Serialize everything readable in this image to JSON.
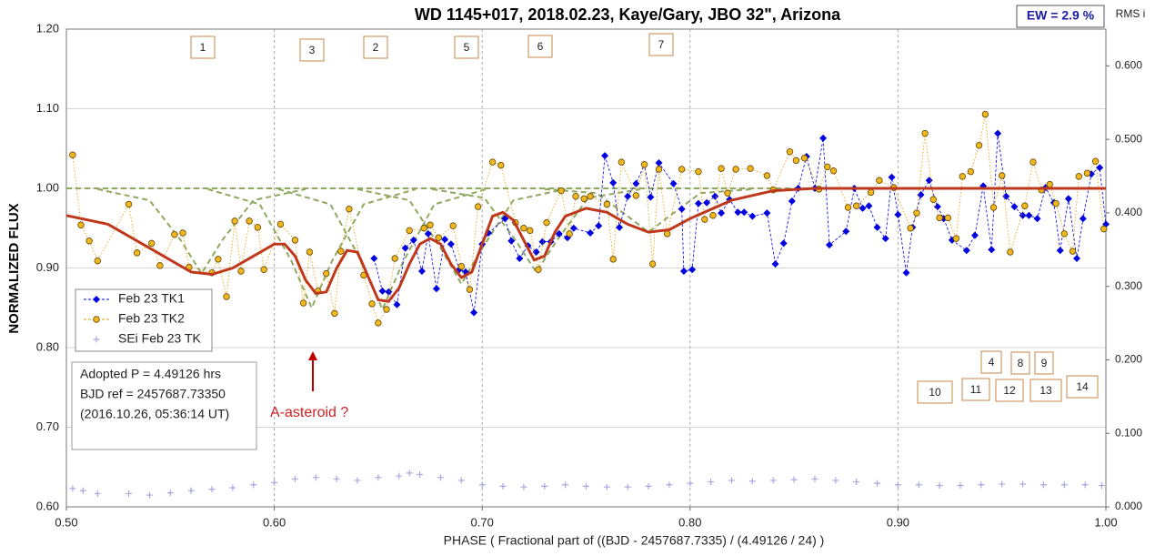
{
  "chart_data": {
    "type": "scatter",
    "title": "WD 1145+017, 2018.02.23, Kaye/Gary,  JBO 32\", Arizona",
    "x_label": "PHASE ( Fractional part of ((BJD - 2457687.7335)  / (4.49126  / 24) )",
    "y_label": "NORMALIZED  FLUX",
    "y2_label": "RMS i",
    "ew_label": "EW =  2.9 %",
    "info": [
      "Adopted P = 4.49126 hrs",
      "BJD ref = 2457687.73350",
      "(2016.10.26, 05:36:14 UT)"
    ],
    "asteroid_note": "A-asteroid ?",
    "dip_labels": [
      "1",
      "3",
      "2",
      "5",
      "6",
      "7",
      "4",
      "8",
      "9",
      "10",
      "11",
      "12",
      "13",
      "14"
    ],
    "xlim": [
      0.5,
      1.0
    ],
    "xticks": [
      {
        "value": 0.5,
        "label": "0.50"
      },
      {
        "value": 0.6,
        "label": "0.60"
      },
      {
        "value": 0.7,
        "label": "0.70"
      },
      {
        "value": 0.8,
        "label": "0.80"
      },
      {
        "value": 0.9,
        "label": "0.90"
      },
      {
        "value": 1.0,
        "label": "1.00"
      }
    ],
    "ylim": [
      0.6,
      1.2
    ],
    "yticks": [
      {
        "value": 0.6,
        "label": "0.60"
      },
      {
        "value": 0.7,
        "label": "0.70"
      },
      {
        "value": 0.8,
        "label": "0.80"
      },
      {
        "value": 0.9,
        "label": "0.90"
      },
      {
        "value": 1.0,
        "label": "1.00"
      },
      {
        "value": 1.1,
        "label": "1.10"
      },
      {
        "value": 1.2,
        "label": "1.20"
      }
    ],
    "y2lim": [
      0,
      0.65
    ],
    "y2ticks": [
      {
        "value": 0,
        "label": "0.000"
      },
      {
        "value": 0.1,
        "label": "0.100"
      },
      {
        "value": 0.2,
        "label": "0.200"
      },
      {
        "value": 0.3,
        "label": "0.300"
      },
      {
        "value": 0.4,
        "label": "0.400"
      },
      {
        "value": 0.5,
        "label": "0.500"
      },
      {
        "value": 0.6,
        "label": "0.600"
      }
    ],
    "grid": true,
    "series": [
      {
        "name": "Feb 23 TK1",
        "color": "#0000e0",
        "marker": "diamond",
        "x": [
          0.648,
          0.652,
          0.655,
          0.659,
          0.663,
          0.667,
          0.671,
          0.674,
          0.678,
          0.682,
          0.685,
          0.689,
          0.692,
          0.696,
          0.7,
          0.703,
          0.711,
          0.714,
          0.718,
          0.722,
          0.726,
          0.729,
          0.733,
          0.737,
          0.741,
          0.744,
          0.752,
          0.756,
          0.759,
          0.763,
          0.766,
          0.77,
          0.774,
          0.778,
          0.781,
          0.785,
          0.792,
          0.796,
          0.797,
          0.801,
          0.804,
          0.808,
          0.812,
          0.815,
          0.819,
          0.823,
          0.826,
          0.83,
          0.837,
          0.841,
          0.845,
          0.849,
          0.852,
          0.856,
          0.86,
          0.864,
          0.867,
          0.875,
          0.879,
          0.883,
          0.886,
          0.89,
          0.894,
          0.897,
          0.9,
          0.904,
          0.907,
          0.911,
          0.915,
          0.919,
          0.922,
          0.926,
          0.933,
          0.937,
          0.941,
          0.945,
          0.948,
          0.952,
          0.956,
          0.96,
          0.963,
          0.967,
          0.971,
          0.975,
          0.978,
          0.982,
          0.986,
          0.989,
          0.993,
          0.997,
          1.0
        ],
        "values": [
          0.912,
          0.871,
          0.87,
          0.854,
          0.925,
          0.935,
          0.896,
          0.943,
          0.874,
          0.936,
          0.93,
          0.898,
          0.895,
          0.844,
          0.93,
          0.944,
          0.962,
          0.934,
          0.912,
          0.928,
          0.92,
          0.933,
          0.933,
          0.943,
          0.938,
          0.95,
          0.944,
          0.953,
          1.041,
          1.007,
          0.951,
          0.99,
          1.006,
          1.03,
          0.989,
          1.032,
          1.006,
          0.974,
          0.896,
          0.898,
          0.981,
          0.982,
          0.99,
          0.969,
          0.986,
          0.97,
          0.97,
          0.965,
          0.969,
          0.905,
          0.931,
          0.984,
          1.0,
          1.04,
          1.0,
          1.063,
          0.929,
          0.946,
          1.0,
          0.975,
          0.978,
          0.951,
          0.937,
          1.014,
          0.967,
          0.894,
          0.951,
          0.992,
          1.01,
          0.977,
          0.962,
          0.935,
          0.922,
          0.941,
          1.003,
          0.923,
          1.069,
          0.99,
          0.977,
          0.966,
          0.966,
          0.962,
          1.001,
          0.982,
          0.922,
          0.987,
          0.912,
          0.962,
          1.018,
          1.026,
          0.955
        ]
      },
      {
        "name": "Feb 23 TK2",
        "color": "#e0a000",
        "marker": "circle",
        "x": [
          0.503,
          0.507,
          0.511,
          0.515,
          0.53,
          0.534,
          0.541,
          0.545,
          0.552,
          0.556,
          0.559,
          0.57,
          0.573,
          0.577,
          0.581,
          0.584,
          0.588,
          0.592,
          0.595,
          0.603,
          0.61,
          0.614,
          0.617,
          0.621,
          0.625,
          0.629,
          0.632,
          0.636,
          0.643,
          0.647,
          0.65,
          0.654,
          0.658,
          0.665,
          0.672,
          0.675,
          0.679,
          0.686,
          0.69,
          0.694,
          0.698,
          0.705,
          0.709,
          0.716,
          0.72,
          0.723,
          0.727,
          0.731,
          0.738,
          0.742,
          0.745,
          0.749,
          0.752,
          0.76,
          0.763,
          0.767,
          0.774,
          0.778,
          0.782,
          0.785,
          0.789,
          0.796,
          0.804,
          0.807,
          0.811,
          0.815,
          0.818,
          0.822,
          0.829,
          0.837,
          0.84,
          0.848,
          0.851,
          0.855,
          0.862,
          0.866,
          0.869,
          0.876,
          0.88,
          0.887,
          0.891,
          0.898,
          0.906,
          0.909,
          0.913,
          0.917,
          0.92,
          0.924,
          0.928,
          0.931,
          0.935,
          0.939,
          0.942,
          0.946,
          0.95,
          0.954,
          0.961,
          0.965,
          0.969,
          0.973,
          0.976,
          0.98,
          0.984,
          0.987,
          0.991,
          0.995,
          0.999
        ],
        "values": [
          1.042,
          0.954,
          0.934,
          0.909,
          0.98,
          0.919,
          0.931,
          0.903,
          0.942,
          0.944,
          0.901,
          0.894,
          0.911,
          0.864,
          0.959,
          0.896,
          0.959,
          0.951,
          0.898,
          0.955,
          0.935,
          0.856,
          0.92,
          0.871,
          0.893,
          0.843,
          0.921,
          0.974,
          0.891,
          0.855,
          0.831,
          0.848,
          0.912,
          0.947,
          0.95,
          0.954,
          0.938,
          0.953,
          0.902,
          0.873,
          0.977,
          1.033,
          1.029,
          0.957,
          0.95,
          0.947,
          0.898,
          0.957,
          0.997,
          0.943,
          0.99,
          0.987,
          0.99,
          0.98,
          0.911,
          1.033,
          0.991,
          1.03,
          0.905,
          1.024,
          0.943,
          1.024,
          1.021,
          0.961,
          0.966,
          1.025,
          0.994,
          1.024,
          1.025,
          1.016,
          0.998,
          1.046,
          1.035,
          1.038,
          0.999,
          1.027,
          1.022,
          0.976,
          0.978,
          0.995,
          1.01,
          1.001,
          0.95,
          0.969,
          1.069,
          0.986,
          0.963,
          0.963,
          0.937,
          1.015,
          1.021,
          1.054,
          1.093,
          0.976,
          1.016,
          0.92,
          0.978,
          1.033,
          0.998,
          1.005,
          0.981,
          0.943,
          0.921,
          1.015,
          1.019,
          1.034,
          0.949
        ]
      },
      {
        "name": "SEi Feb 23 TK",
        "color": "#a8a8e0",
        "marker": "plus",
        "axis": "y2",
        "x": [
          0.503,
          0.508,
          0.515,
          0.53,
          0.54,
          0.55,
          0.56,
          0.57,
          0.58,
          0.59,
          0.6,
          0.61,
          0.62,
          0.63,
          0.64,
          0.65,
          0.66,
          0.665,
          0.67,
          0.68,
          0.69,
          0.7,
          0.71,
          0.72,
          0.73,
          0.74,
          0.75,
          0.76,
          0.77,
          0.78,
          0.79,
          0.8,
          0.81,
          0.82,
          0.83,
          0.84,
          0.85,
          0.86,
          0.87,
          0.88,
          0.89,
          0.9,
          0.91,
          0.92,
          0.93,
          0.94,
          0.95,
          0.96,
          0.97,
          0.98,
          0.99,
          0.998
        ],
        "values": [
          0.025,
          0.022,
          0.018,
          0.018,
          0.016,
          0.019,
          0.022,
          0.024,
          0.026,
          0.03,
          0.033,
          0.038,
          0.04,
          0.038,
          0.036,
          0.04,
          0.042,
          0.046,
          0.044,
          0.04,
          0.036,
          0.03,
          0.028,
          0.027,
          0.028,
          0.03,
          0.028,
          0.027,
          0.027,
          0.028,
          0.03,
          0.032,
          0.034,
          0.036,
          0.035,
          0.036,
          0.037,
          0.038,
          0.036,
          0.034,
          0.032,
          0.03,
          0.03,
          0.029,
          0.029,
          0.03,
          0.031,
          0.031,
          0.03,
          0.03,
          0.03,
          0.029
        ]
      }
    ],
    "model": {
      "color": "#c0381c",
      "x": [
        0.5,
        0.52,
        0.54,
        0.56,
        0.57,
        0.58,
        0.59,
        0.6,
        0.605,
        0.61,
        0.615,
        0.62,
        0.625,
        0.63,
        0.635,
        0.64,
        0.645,
        0.65,
        0.655,
        0.66,
        0.665,
        0.67,
        0.675,
        0.68,
        0.685,
        0.69,
        0.695,
        0.7,
        0.705,
        0.71,
        0.715,
        0.72,
        0.725,
        0.73,
        0.735,
        0.74,
        0.75,
        0.76,
        0.77,
        0.78,
        0.79,
        0.8,
        0.82,
        0.84,
        0.86,
        1.0
      ],
      "values": [
        0.966,
        0.955,
        0.925,
        0.895,
        0.892,
        0.9,
        0.915,
        0.93,
        0.93,
        0.915,
        0.885,
        0.868,
        0.87,
        0.9,
        0.922,
        0.92,
        0.89,
        0.86,
        0.858,
        0.875,
        0.905,
        0.93,
        0.937,
        0.93,
        0.905,
        0.888,
        0.895,
        0.93,
        0.965,
        0.97,
        0.96,
        0.935,
        0.91,
        0.915,
        0.945,
        0.965,
        0.975,
        0.97,
        0.955,
        0.945,
        0.948,
        0.962,
        0.985,
        0.997,
        1.0,
        1.0
      ]
    },
    "components": {
      "color": "#8fa860",
      "x": [
        0.5,
        1.0,
        null,
        0.515,
        0.54,
        0.555,
        0.565,
        0.575,
        0.59,
        0.615,
        null,
        0.568,
        0.593,
        0.608,
        0.618,
        0.628,
        0.643,
        0.668,
        null,
        0.602,
        0.627,
        0.642,
        0.652,
        0.662,
        0.677,
        0.702,
        null,
        0.64,
        0.665,
        0.68,
        0.69,
        0.7,
        0.715,
        0.74,
        null,
        0.676,
        0.701,
        0.716,
        0.726,
        0.736,
        0.751,
        0.776,
        null,
        0.73,
        0.755,
        0.77,
        0.78,
        0.79,
        0.805,
        0.83
      ],
      "values": [
        1.0,
        1.0,
        null,
        0.999,
        0.985,
        0.935,
        0.893,
        0.935,
        0.985,
        0.999,
        null,
        0.999,
        0.98,
        0.91,
        0.85,
        0.91,
        0.98,
        0.999,
        null,
        0.999,
        0.98,
        0.908,
        0.848,
        0.908,
        0.98,
        0.999,
        null,
        0.999,
        0.985,
        0.925,
        0.88,
        0.925,
        0.985,
        0.999,
        null,
        0.999,
        0.988,
        0.935,
        0.895,
        0.935,
        0.988,
        0.999,
        null,
        0.999,
        0.994,
        0.965,
        0.945,
        0.965,
        0.994,
        0.999
      ]
    }
  }
}
